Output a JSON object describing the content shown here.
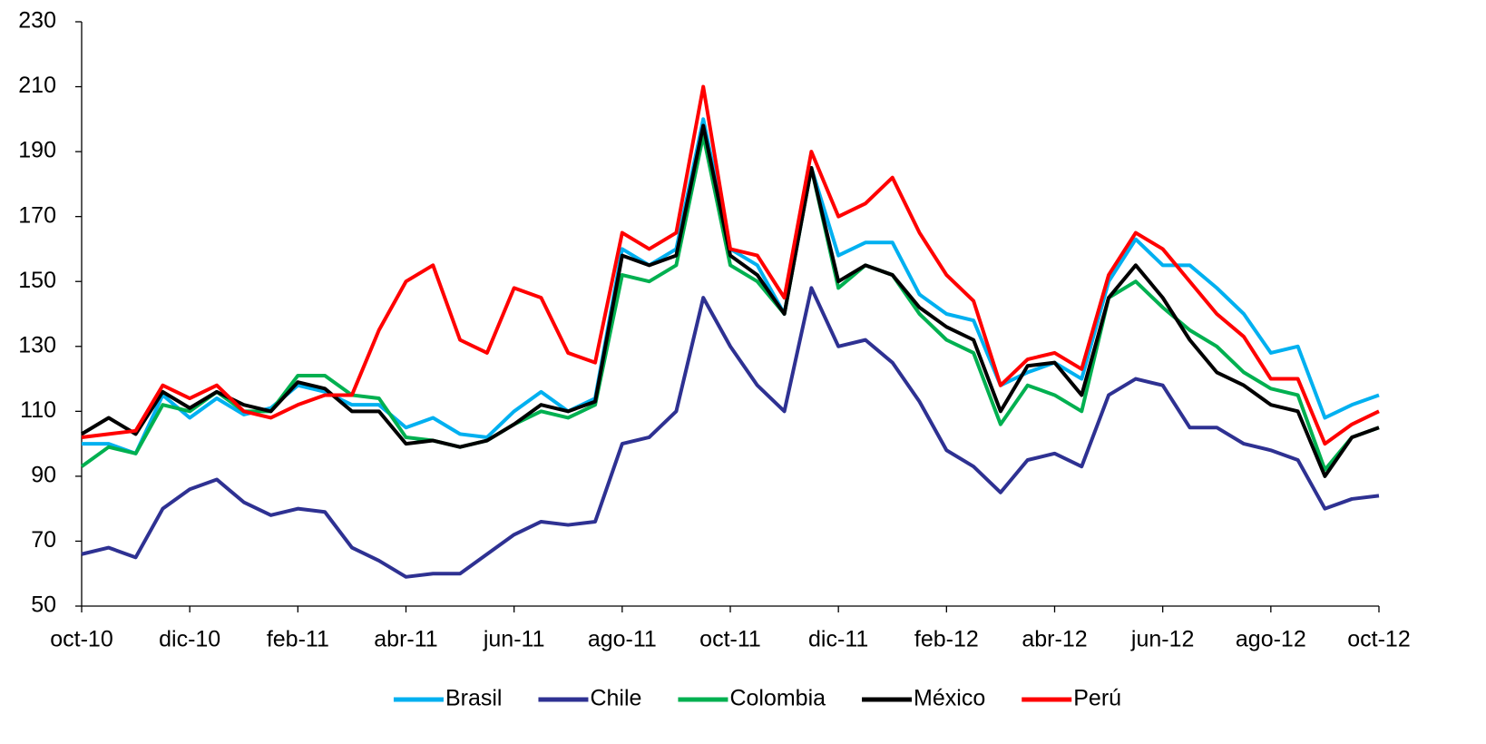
{
  "chart_data": {
    "type": "line",
    "categories": [
      "oct-10",
      null,
      null,
      null,
      "dic-10",
      null,
      null,
      null,
      "feb-11",
      null,
      null,
      null,
      "abr-11",
      null,
      null,
      null,
      "jun-11",
      null,
      null,
      null,
      "ago-11",
      null,
      null,
      null,
      "oct-11",
      null,
      null,
      null,
      "dic-11",
      null,
      null,
      null,
      "feb-12",
      null,
      null,
      null,
      "abr-12",
      null,
      null,
      null,
      "jun-12",
      null,
      null,
      null,
      "ago-12",
      null,
      null,
      null,
      "oct-12"
    ],
    "series": [
      {
        "name": "Brasil",
        "color": "#00b0f0",
        "values": [
          100,
          100,
          97,
          115,
          108,
          114,
          109,
          111,
          118,
          116,
          112,
          112,
          105,
          108,
          103,
          102,
          110,
          116,
          110,
          114,
          160,
          155,
          160,
          200,
          160,
          155,
          140,
          185,
          158,
          162,
          162,
          146,
          140,
          138,
          118,
          122,
          125,
          120,
          150,
          163,
          155,
          155,
          148,
          140,
          128,
          130,
          108,
          112,
          115
        ]
      },
      {
        "name": "Chile",
        "color": "#2e3192",
        "values": [
          66,
          68,
          65,
          80,
          86,
          89,
          82,
          78,
          80,
          79,
          68,
          64,
          59,
          60,
          60,
          66,
          72,
          76,
          75,
          76,
          100,
          102,
          110,
          145,
          130,
          118,
          110,
          148,
          130,
          132,
          125,
          113,
          98,
          93,
          85,
          95,
          97,
          93,
          115,
          120,
          118,
          105,
          105,
          100,
          98,
          95,
          80,
          83,
          84
        ]
      },
      {
        "name": "Colombia",
        "color": "#00b050",
        "values": [
          93,
          99,
          97,
          112,
          110,
          116,
          110,
          110,
          121,
          121,
          115,
          114,
          102,
          101,
          99,
          101,
          106,
          110,
          108,
          112,
          152,
          150,
          155,
          195,
          155,
          150,
          140,
          185,
          148,
          155,
          152,
          140,
          132,
          128,
          106,
          118,
          115,
          110,
          145,
          150,
          142,
          135,
          130,
          122,
          117,
          115,
          92,
          102,
          105
        ]
      },
      {
        "name": "México",
        "color": "#000000",
        "values": [
          103,
          108,
          103,
          116,
          111,
          116,
          112,
          110,
          119,
          117,
          110,
          110,
          100,
          101,
          99,
          101,
          106,
          112,
          110,
          113,
          158,
          155,
          158,
          198,
          158,
          152,
          140,
          185,
          150,
          155,
          152,
          142,
          136,
          132,
          110,
          124,
          125,
          115,
          145,
          155,
          145,
          132,
          122,
          118,
          112,
          110,
          90,
          102,
          105
        ]
      },
      {
        "name": "Perú",
        "color": "#ff0000",
        "values": [
          102,
          103,
          104,
          118,
          114,
          118,
          110,
          108,
          112,
          115,
          115,
          135,
          150,
          155,
          132,
          128,
          148,
          145,
          128,
          125,
          165,
          160,
          165,
          210,
          160,
          158,
          145,
          190,
          170,
          174,
          182,
          165,
          152,
          144,
          118,
          126,
          128,
          123,
          152,
          165,
          160,
          150,
          140,
          133,
          120,
          120,
          100,
          106,
          110
        ]
      }
    ],
    "ylim": [
      50,
      230
    ],
    "yticks": [
      50,
      70,
      90,
      110,
      130,
      150,
      170,
      190,
      210,
      230
    ],
    "legend": "bottom"
  }
}
